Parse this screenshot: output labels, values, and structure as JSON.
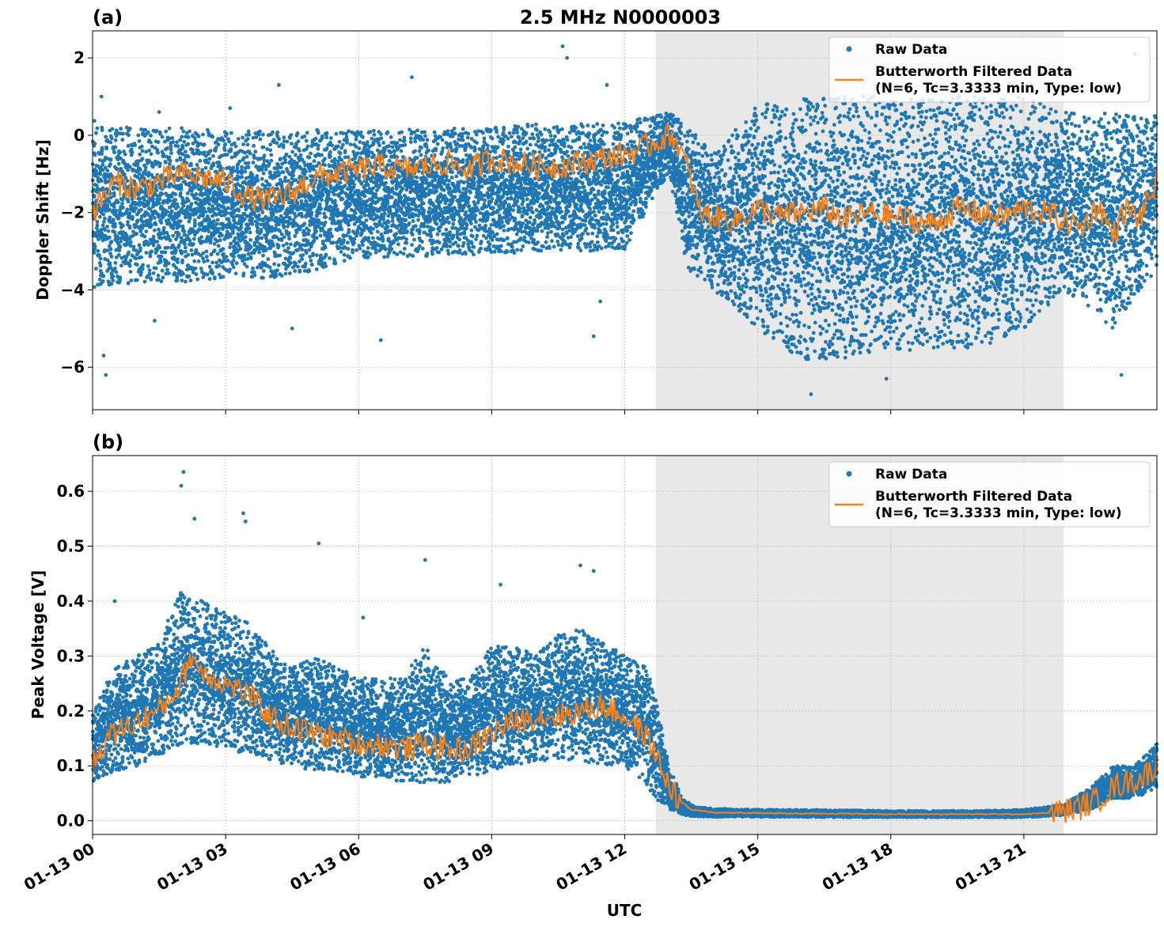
{
  "figure_title": "2.5 MHz N0000003",
  "xlabel": "UTC",
  "colors": {
    "raw": "#1f77b4",
    "filtered": "#ff7f0e",
    "shade": "#e8e8e8",
    "grid": "#b0b0b0"
  },
  "chart_data": [
    {
      "type": "scatter",
      "panel_label": "(a)",
      "ylabel": "Doppler Shift [Hz]",
      "xlim_hours": [
        0,
        24
      ],
      "ylim": [
        -7.1,
        2.7
      ],
      "yticks": [
        2,
        0,
        -2,
        -4,
        -6
      ],
      "ytick_labels": [
        "2",
        "0",
        "−2",
        "−4",
        "−6"
      ],
      "grid": true,
      "legend_position": "top-right",
      "shaded_interval_hours": [
        12.7,
        21.9
      ],
      "series": [
        {
          "name": "Raw Data",
          "kind": "points",
          "envelope": {
            "hours": [
              0,
              1,
              2,
              3,
              4,
              5,
              6,
              7,
              8,
              9,
              10,
              11,
              12,
              12.7,
              13,
              13.4,
              14,
              15,
              16,
              17,
              18,
              19,
              20,
              21,
              21.9,
              22.5,
              23,
              24
            ],
            "upper": [
              0.4,
              0.2,
              0.2,
              0.1,
              0.1,
              0.15,
              0.1,
              0.15,
              0.2,
              0.2,
              0.3,
              0.3,
              0.35,
              0.5,
              0.6,
              0.3,
              -0.5,
              0.8,
              1.0,
              1.0,
              1.0,
              1.0,
              1.0,
              1.0,
              0.6,
              0.5,
              0.6,
              0.5
            ],
            "lower": [
              -4.0,
              -3.8,
              -3.8,
              -3.7,
              -3.7,
              -3.5,
              -3.2,
              -3.2,
              -3.1,
              -3.1,
              -3.0,
              -3.0,
              -3.0,
              -1.5,
              -1.0,
              -3.5,
              -4.0,
              -5.0,
              -5.8,
              -5.8,
              -5.6,
              -5.5,
              -5.5,
              -5.0,
              -4.0,
              -4.5,
              -5.0,
              -3.5
            ]
          },
          "outliers": [
            {
              "hour": 0.2,
              "value": 1.0
            },
            {
              "hour": 0.3,
              "value": -6.2
            },
            {
              "hour": 0.25,
              "value": -5.7
            },
            {
              "hour": 1.5,
              "value": 0.6
            },
            {
              "hour": 1.4,
              "value": -4.8
            },
            {
              "hour": 3.1,
              "value": 0.7
            },
            {
              "hour": 4.2,
              "value": 1.3
            },
            {
              "hour": 4.5,
              "value": -5.0
            },
            {
              "hour": 6.5,
              "value": -5.3
            },
            {
              "hour": 7.2,
              "value": 1.5
            },
            {
              "hour": 10.6,
              "value": 2.3
            },
            {
              "hour": 10.7,
              "value": 2.0
            },
            {
              "hour": 11.6,
              "value": 1.3
            },
            {
              "hour": 11.3,
              "value": -5.2
            },
            {
              "hour": 11.45,
              "value": -4.3
            },
            {
              "hour": 16.2,
              "value": -6.7
            },
            {
              "hour": 17.9,
              "value": -6.3
            },
            {
              "hour": 23.5,
              "value": 2.1
            },
            {
              "hour": 23.2,
              "value": -6.2
            }
          ]
        },
        {
          "name": "Butterworth Filtered Data\n(N=6, Tc=3.3333 min, Type: low)",
          "kind": "line",
          "hours": [
            0,
            0.5,
            1,
            1.5,
            2,
            2.5,
            3,
            3.5,
            4,
            4.5,
            5,
            5.5,
            6,
            6.5,
            7,
            7.5,
            8,
            8.5,
            9,
            9.5,
            10,
            10.5,
            11,
            11.5,
            12,
            12.5,
            12.8,
            13.1,
            13.4,
            13.7,
            14,
            14.5,
            15,
            15.5,
            16,
            16.5,
            17,
            17.5,
            18,
            18.5,
            19,
            19.5,
            20,
            20.5,
            21,
            21.5,
            21.9,
            22.3,
            22.7,
            23,
            23.3,
            23.6,
            24
          ],
          "values": [
            -2.0,
            -1.2,
            -1.4,
            -1.2,
            -1.0,
            -1.1,
            -1.2,
            -1.6,
            -1.7,
            -1.5,
            -1.1,
            -1.0,
            -0.9,
            -0.8,
            -0.9,
            -0.8,
            -0.7,
            -0.9,
            -0.6,
            -0.7,
            -0.8,
            -0.8,
            -0.7,
            -0.6,
            -0.5,
            -0.3,
            -0.1,
            0.0,
            -0.8,
            -2.0,
            -2.1,
            -2.2,
            -1.9,
            -2.1,
            -2.0,
            -1.9,
            -2.2,
            -2.0,
            -2.1,
            -2.2,
            -2.3,
            -1.9,
            -2.0,
            -2.1,
            -1.9,
            -2.0,
            -2.2,
            -2.4,
            -1.8,
            -2.6,
            -1.9,
            -2.2,
            -1.2
          ]
        }
      ]
    },
    {
      "type": "scatter",
      "panel_label": "(b)",
      "ylabel": "Peak Voltage [V]",
      "xlim_hours": [
        0,
        24
      ],
      "ylim": [
        -0.025,
        0.665
      ],
      "yticks": [
        0.6,
        0.5,
        0.4,
        0.3,
        0.2,
        0.1,
        0.0
      ],
      "ytick_labels": [
        "0.6",
        "0.5",
        "0.4",
        "0.3",
        "0.2",
        "0.1",
        "0.0"
      ],
      "grid": true,
      "legend_position": "top-right",
      "shaded_interval_hours": [
        12.7,
        21.9
      ],
      "series": [
        {
          "name": "Raw Data",
          "kind": "points",
          "envelope": {
            "hours": [
              0,
              0.5,
              1,
              1.5,
              2,
              2.5,
              3,
              3.5,
              4,
              4.5,
              5,
              5.5,
              6,
              6.5,
              7,
              7.5,
              8,
              8.5,
              9,
              9.5,
              10,
              10.5,
              11,
              11.5,
              12,
              12.5,
              12.7,
              13,
              13.3,
              13.6,
              14,
              15,
              16,
              17,
              18,
              19,
              20,
              21,
              21.9,
              22.5,
              23,
              23.5,
              24
            ],
            "upper": [
              0.2,
              0.28,
              0.3,
              0.33,
              0.42,
              0.4,
              0.38,
              0.36,
              0.32,
              0.28,
              0.3,
              0.28,
              0.26,
              0.26,
              0.26,
              0.32,
              0.26,
              0.26,
              0.32,
              0.32,
              0.3,
              0.34,
              0.35,
              0.33,
              0.3,
              0.28,
              0.22,
              0.1,
              0.04,
              0.025,
              0.022,
              0.02,
              0.02,
              0.019,
              0.018,
              0.018,
              0.018,
              0.02,
              0.03,
              0.06,
              0.1,
              0.1,
              0.14
            ],
            "lower": [
              0.07,
              0.09,
              0.1,
              0.12,
              0.14,
              0.14,
              0.13,
              0.12,
              0.11,
              0.1,
              0.09,
              0.09,
              0.08,
              0.08,
              0.07,
              0.07,
              0.07,
              0.08,
              0.09,
              0.1,
              0.11,
              0.11,
              0.11,
              0.1,
              0.1,
              0.06,
              0.04,
              0.02,
              0.01,
              0.008,
              0.007,
              0.007,
              0.007,
              0.006,
              0.006,
              0.006,
              0.006,
              0.006,
              0.01,
              0.02,
              0.04,
              0.04,
              0.06
            ]
          },
          "outliers": [
            {
              "hour": 2.05,
              "value": 0.635
            },
            {
              "hour": 2.0,
              "value": 0.61
            },
            {
              "hour": 2.3,
              "value": 0.55
            },
            {
              "hour": 3.4,
              "value": 0.56
            },
            {
              "hour": 3.45,
              "value": 0.545
            },
            {
              "hour": 5.1,
              "value": 0.505
            },
            {
              "hour": 0.5,
              "value": 0.4
            },
            {
              "hour": 7.5,
              "value": 0.475
            },
            {
              "hour": 11.0,
              "value": 0.465
            },
            {
              "hour": 11.3,
              "value": 0.455
            },
            {
              "hour": 9.2,
              "value": 0.43
            },
            {
              "hour": 6.1,
              "value": 0.37
            }
          ]
        },
        {
          "name": "Butterworth Filtered Data\n(N=6, Tc=3.3333 min, Type: low)",
          "kind": "line",
          "hours": [
            0,
            0.3,
            0.5,
            1,
            1.5,
            2,
            2.2,
            2.5,
            3,
            3.5,
            4,
            4.5,
            5,
            5.5,
            6,
            6.5,
            7,
            7.5,
            8,
            8.5,
            9,
            9.5,
            10,
            10.5,
            11,
            11.5,
            12,
            12.3,
            12.6,
            12.9,
            13.2,
            13.5,
            14,
            15,
            16,
            17,
            18,
            19,
            20,
            21,
            21.5,
            21.9,
            22.3,
            22.7,
            23,
            23.3,
            23.6,
            24
          ],
          "values": [
            0.1,
            0.15,
            0.16,
            0.18,
            0.2,
            0.25,
            0.3,
            0.27,
            0.25,
            0.23,
            0.19,
            0.17,
            0.16,
            0.15,
            0.14,
            0.14,
            0.13,
            0.14,
            0.13,
            0.13,
            0.16,
            0.18,
            0.19,
            0.19,
            0.2,
            0.21,
            0.19,
            0.17,
            0.14,
            0.08,
            0.04,
            0.02,
            0.015,
            0.014,
            0.013,
            0.013,
            0.012,
            0.012,
            0.012,
            0.012,
            0.014,
            0.018,
            0.025,
            0.04,
            0.06,
            0.07,
            0.075,
            0.1
          ]
        }
      ]
    }
  ],
  "xtick_labels": [
    "01-13 00",
    "01-13 03",
    "01-13 06",
    "01-13 09",
    "01-13 12",
    "01-13 15",
    "01-13 18",
    "01-13 21"
  ],
  "xtick_hours": [
    0,
    3,
    6,
    9,
    12,
    15,
    18,
    21
  ],
  "legend": {
    "raw_label": "Raw Data",
    "filtered_line1": "Butterworth Filtered Data",
    "filtered_line2": "(N=6, Tc=3.3333 min, Type: low)"
  }
}
